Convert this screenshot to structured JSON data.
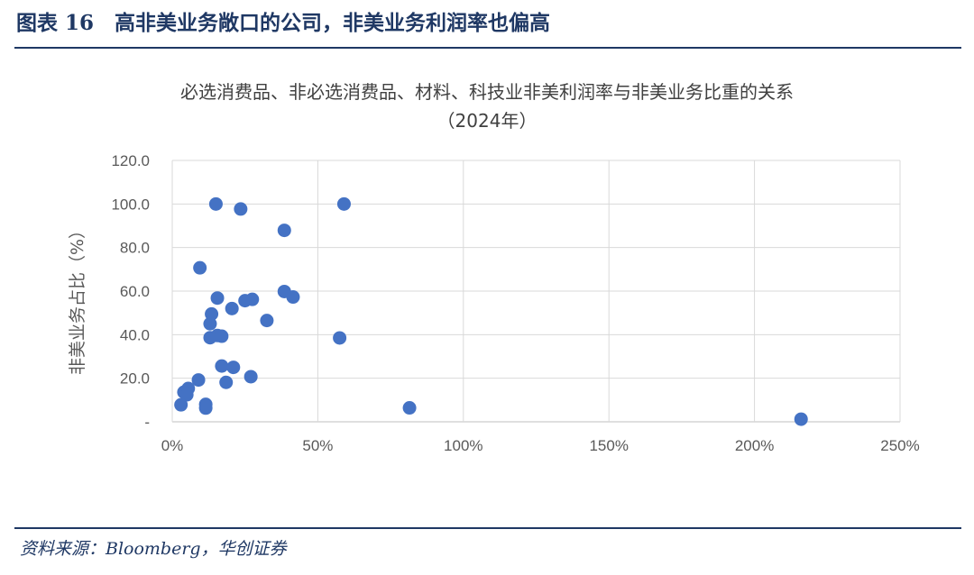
{
  "figure": {
    "title": "图表 16　高非美业务敞口的公司，非美业务利润率也偏高",
    "source": "资料来源：Bloomberg，华创证券"
  },
  "chart_data": {
    "type": "scatter",
    "title": "必选消费品、非必选消费品、材料、科技业非美利润率与非美业务比重的关系",
    "subtitle": "（2024年）",
    "xlabel": "",
    "ylabel": "非美业务占比（%）",
    "xlim": [
      0,
      2.5
    ],
    "ylim": [
      0,
      120
    ],
    "x_ticks": [
      {
        "value": 0,
        "label": "0%"
      },
      {
        "value": 0.5,
        "label": "50%"
      },
      {
        "value": 1.0,
        "label": "100%"
      },
      {
        "value": 1.5,
        "label": "150%"
      },
      {
        "value": 2.0,
        "label": "200%"
      },
      {
        "value": 2.5,
        "label": "250%"
      }
    ],
    "y_ticks": [
      {
        "value": 0,
        "label": "-"
      },
      {
        "value": 20,
        "label": "20.0"
      },
      {
        "value": 40,
        "label": "40.0"
      },
      {
        "value": 60,
        "label": "60.0"
      },
      {
        "value": 80,
        "label": "80.0"
      },
      {
        "value": 100,
        "label": "100.0"
      },
      {
        "value": 120,
        "label": "120.0"
      }
    ],
    "grid": true,
    "marker_color": "#4472c4",
    "points": [
      {
        "x": 0.15,
        "y": 100
      },
      {
        "x": 0.59,
        "y": 100
      },
      {
        "x": 0.235,
        "y": 97.7
      },
      {
        "x": 0.385,
        "y": 87.9
      },
      {
        "x": 0.095,
        "y": 70.7
      },
      {
        "x": 0.385,
        "y": 59.8
      },
      {
        "x": 0.415,
        "y": 57.3
      },
      {
        "x": 0.155,
        "y": 56.8
      },
      {
        "x": 0.25,
        "y": 55.6
      },
      {
        "x": 0.275,
        "y": 56.2
      },
      {
        "x": 0.205,
        "y": 52.0
      },
      {
        "x": 0.135,
        "y": 49.5
      },
      {
        "x": 0.325,
        "y": 46.5
      },
      {
        "x": 0.13,
        "y": 45.0
      },
      {
        "x": 0.155,
        "y": 39.6
      },
      {
        "x": 0.17,
        "y": 39.3
      },
      {
        "x": 0.13,
        "y": 38.6
      },
      {
        "x": 0.575,
        "y": 38.5
      },
      {
        "x": 0.17,
        "y": 25.6
      },
      {
        "x": 0.21,
        "y": 25.0
      },
      {
        "x": 0.27,
        "y": 20.7
      },
      {
        "x": 0.09,
        "y": 19.2
      },
      {
        "x": 0.185,
        "y": 18.1
      },
      {
        "x": 0.055,
        "y": 15.3
      },
      {
        "x": 0.04,
        "y": 13.6
      },
      {
        "x": 0.05,
        "y": 12.4
      },
      {
        "x": 0.115,
        "y": 8.0
      },
      {
        "x": 0.03,
        "y": 7.8
      },
      {
        "x": 0.115,
        "y": 6.3
      },
      {
        "x": 0.815,
        "y": 6.4
      },
      {
        "x": 2.16,
        "y": 1.2
      }
    ]
  }
}
